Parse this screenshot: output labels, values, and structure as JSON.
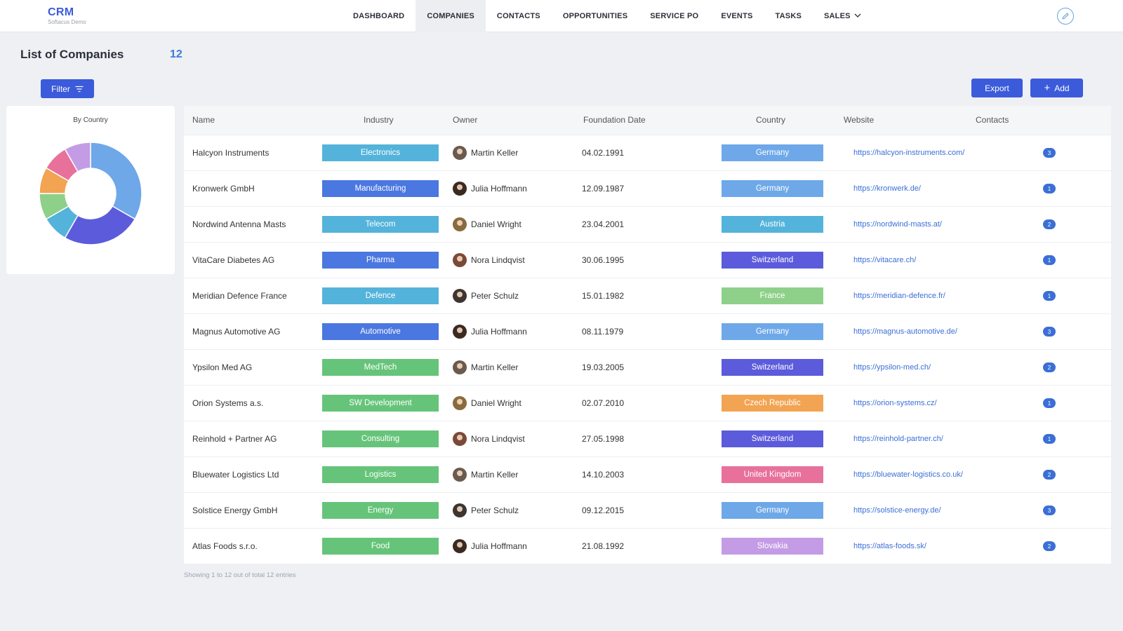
{
  "brand": {
    "title": "CRM",
    "subtitle": "Softacus Demo"
  },
  "nav": [
    {
      "label": "DASHBOARD",
      "active": false
    },
    {
      "label": "COMPANIES",
      "active": true
    },
    {
      "label": "CONTACTS",
      "active": false
    },
    {
      "label": "OPPORTUNITIES",
      "active": false
    },
    {
      "label": "SERVICE PO",
      "active": false
    },
    {
      "label": "EVENTS",
      "active": false
    },
    {
      "label": "TASKS",
      "active": false
    },
    {
      "label": "SALES",
      "active": false,
      "dropdown": true
    }
  ],
  "header": {
    "title": "List of Companies",
    "count": "12"
  },
  "buttons": {
    "filter": "Filter",
    "export": "Export",
    "add": "Add"
  },
  "chart_data": {
    "type": "pie",
    "title": "By Country",
    "categories": [
      "Germany",
      "Switzerland",
      "Austria",
      "France",
      "Czech Republic",
      "United Kingdom",
      "Slovakia"
    ],
    "values": [
      4,
      3,
      1,
      1,
      1,
      1,
      1
    ],
    "colors": [
      "#6ea8e8",
      "#5b5bdc",
      "#54b3da",
      "#8ed08a",
      "#f2a452",
      "#e8719b",
      "#c49ce6"
    ]
  },
  "table": {
    "columns": [
      "Name",
      "Industry",
      "Owner",
      "Foundation Date",
      "Country",
      "Website",
      "Contacts"
    ],
    "rows": [
      {
        "name": "Halcyon Instruments",
        "industry": "Electronics",
        "owner": "Martin Keller",
        "date": "04.02.1991",
        "country": "Germany",
        "website": "https://halcyon-instruments.com/",
        "contacts": "3"
      },
      {
        "name": "Kronwerk GmbH",
        "industry": "Manufacturing",
        "owner": "Julia Hoffmann",
        "date": "12.09.1987",
        "country": "Germany",
        "website": "https://kronwerk.de/",
        "contacts": "1"
      },
      {
        "name": "Nordwind Antenna Masts",
        "industry": "Telecom",
        "owner": "Daniel Wright",
        "date": "23.04.2001",
        "country": "Austria",
        "website": "https://nordwind-masts.at/",
        "contacts": "2"
      },
      {
        "name": "VitaCare Diabetes AG",
        "industry": "Pharma",
        "owner": "Nora Lindqvist",
        "date": "30.06.1995",
        "country": "Switzerland",
        "website": "https://vitacare.ch/",
        "contacts": "1"
      },
      {
        "name": "Meridian Defence France",
        "industry": "Defence",
        "owner": "Peter Schulz",
        "date": "15.01.1982",
        "country": "France",
        "website": "https://meridian-defence.fr/",
        "contacts": "1"
      },
      {
        "name": "Magnus Automotive AG",
        "industry": "Automotive",
        "owner": "Julia Hoffmann",
        "date": "08.11.1979",
        "country": "Germany",
        "website": "https://magnus-automotive.de/",
        "contacts": "3"
      },
      {
        "name": "Ypsilon Med AG",
        "industry": "MedTech",
        "owner": "Martin Keller",
        "date": "19.03.2005",
        "country": "Switzerland",
        "website": "https://ypsilon-med.ch/",
        "contacts": "2"
      },
      {
        "name": "Orion Systems a.s.",
        "industry": "SW Development",
        "owner": "Daniel Wright",
        "date": "02.07.2010",
        "country": "Czech Republic",
        "website": "https://orion-systems.cz/",
        "contacts": "1"
      },
      {
        "name": "Reinhold + Partner AG",
        "industry": "Consulting",
        "owner": "Nora Lindqvist",
        "date": "27.05.1998",
        "country": "Switzerland",
        "website": "https://reinhold-partner.ch/",
        "contacts": "1"
      },
      {
        "name": "Bluewater Logistics Ltd",
        "industry": "Logistics",
        "owner": "Martin Keller",
        "date": "14.10.2003",
        "country": "United Kingdom",
        "website": "https://bluewater-logistics.co.uk/",
        "contacts": "2"
      },
      {
        "name": "Solstice Energy GmbH",
        "industry": "Energy",
        "owner": "Peter Schulz",
        "date": "09.12.2015",
        "country": "Germany",
        "website": "https://solstice-energy.de/",
        "contacts": "3"
      },
      {
        "name": "Atlas Foods s.r.o.",
        "industry": "Food",
        "owner": "Julia Hoffmann",
        "date": "21.08.1992",
        "country": "Slovakia",
        "website": "https://atlas-foods.sk/",
        "contacts": "2"
      }
    ]
  },
  "industry_colors": {
    "Electronics": "#54b3da",
    "Manufacturing": "#4a77e0",
    "Telecom": "#54b3da",
    "Pharma": "#4a77e0",
    "Defence": "#54b3da",
    "Automotive": "#4a77e0",
    "MedTech": "#66c47a",
    "SW Development": "#66c47a",
    "Consulting": "#66c47a",
    "Logistics": "#66c47a",
    "Energy": "#66c47a",
    "Food": "#66c47a"
  },
  "country_colors": {
    "Germany": "#6ea8e8",
    "Austria": "#54b3da",
    "Switzerland": "#5b5bdc",
    "France": "#8ed08a",
    "Czech Republic": "#f2a452",
    "United Kingdom": "#e8719b",
    "Slovakia": "#c49ce6"
  },
  "owner_colors": {
    "Martin Keller": "#6b5a4e",
    "Julia Hoffmann": "#3a2a22",
    "Daniel Wright": "#8a6b3e",
    "Nora Lindqvist": "#7a4a38",
    "Peter Schulz": "#3e3530"
  },
  "footer": "Showing 1 to 12 out of total 12 entries"
}
